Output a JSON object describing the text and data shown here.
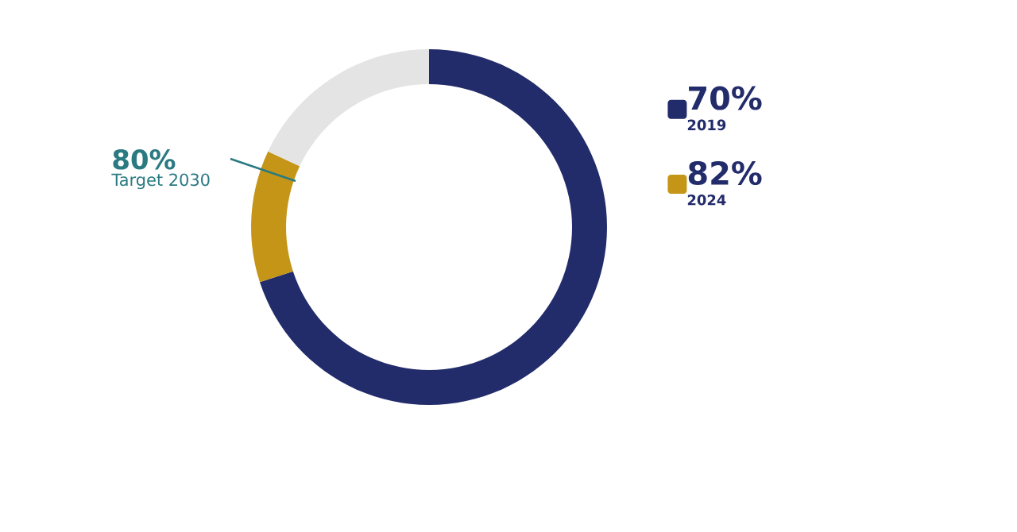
{
  "chart_data": {
    "type": "donut",
    "categories": [
      "2019",
      "2024",
      null
    ],
    "values": [
      70,
      12,
      18
    ],
    "colors": [
      "#232c6b",
      "#c49516",
      "#e4e4e4"
    ],
    "legend": "right",
    "annotations": [
      "80%",
      "Target 2030",
      "70%",
      "82%"
    ]
  }
}
